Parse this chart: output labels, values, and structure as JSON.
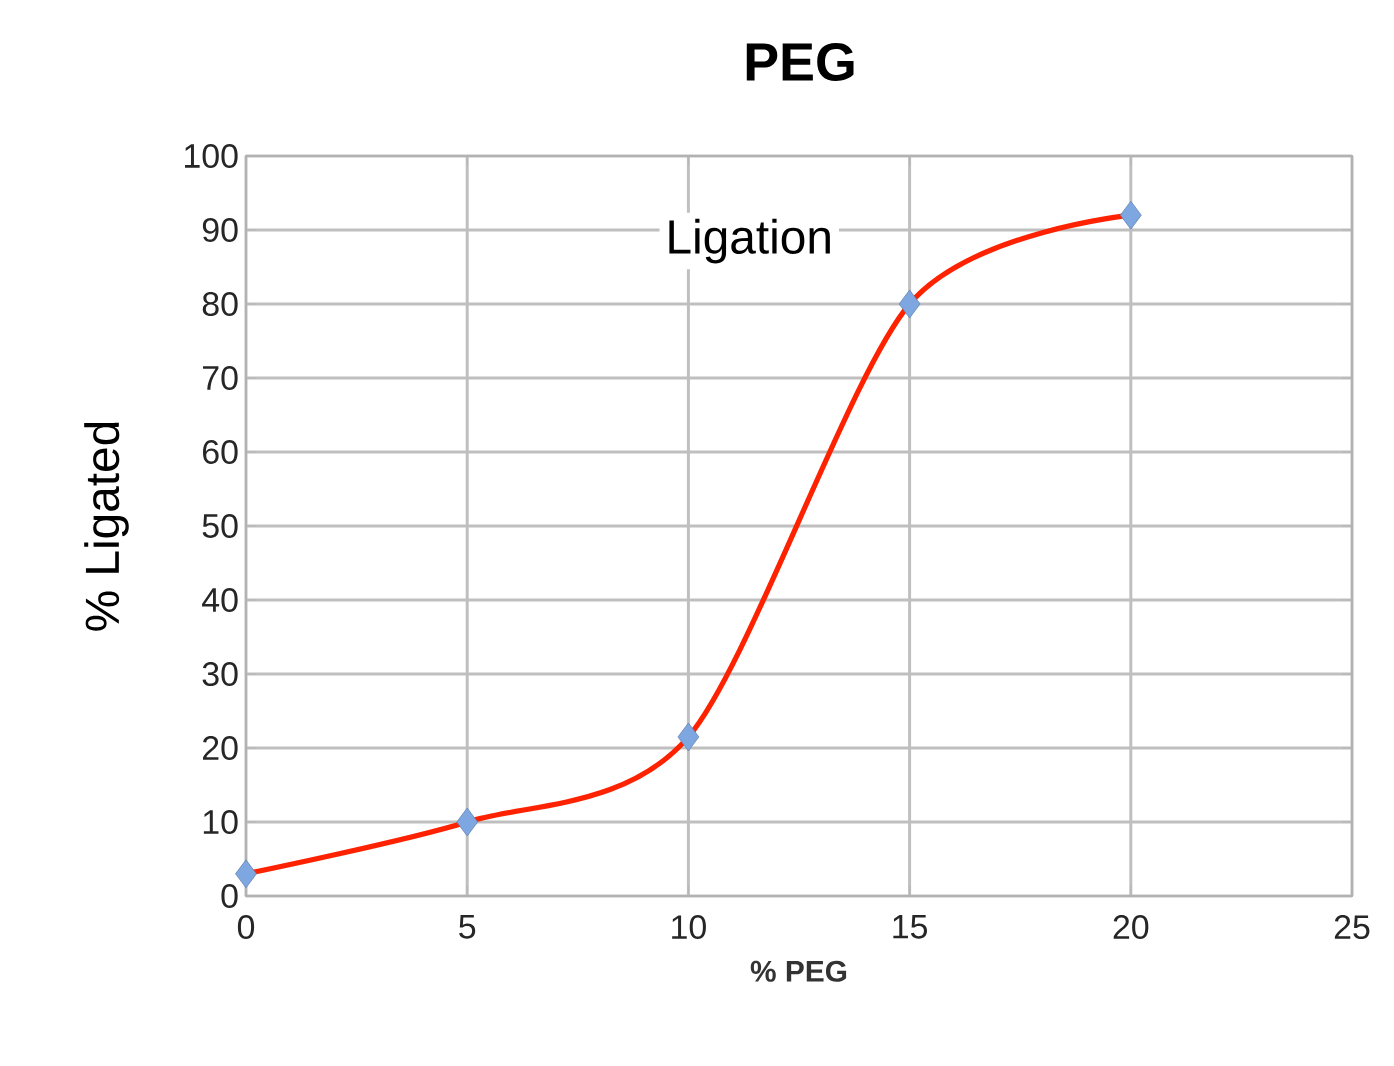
{
  "chart_data": {
    "type": "line",
    "title": "PEG",
    "xlabel": "% PEG",
    "ylabel": "% Ligated",
    "annotations": [
      "Ligation"
    ],
    "x": [
      0,
      5,
      10,
      15,
      20
    ],
    "series": [
      {
        "color": "#ff2200",
        "values": [
          3,
          10,
          21.5,
          80,
          92
        ]
      }
    ],
    "xlim": [
      0,
      25
    ],
    "xticks": [
      0,
      5,
      10,
      15,
      20,
      25
    ],
    "ylim": [
      0,
      100
    ],
    "yticks": [
      0,
      10,
      20,
      30,
      40,
      50,
      60,
      70,
      80,
      90,
      100
    ],
    "grid": true,
    "marker": "diamond",
    "line_style": "solid"
  }
}
